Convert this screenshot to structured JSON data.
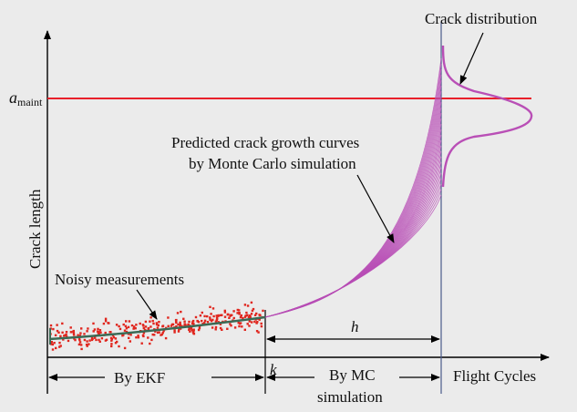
{
  "figure": {
    "y_axis_label": "Crack length",
    "x_axis_label": "Flight Cycles",
    "threshold_label_main": "a",
    "threshold_label_sub": "maint",
    "crack_distribution_label": "Crack distribution",
    "mc_label_line1": "Predicted crack growth curves",
    "mc_label_line2": "by Monte Carlo simulation",
    "noisy_label": "Noisy measurements",
    "ekf_label": "By EKF",
    "k_label": "k",
    "h_label": "h",
    "mc_region_line1": "By MC",
    "mc_region_line2": "simulation"
  },
  "colors": {
    "background": "#ebebeb",
    "threshold_line": "#e8202a",
    "mc_curves": "#b94fb6",
    "measurements": "#e0261e",
    "ekf_fit": "#3a6a55",
    "axes": "#000000",
    "marker_line": "#4a5a8a"
  }
}
